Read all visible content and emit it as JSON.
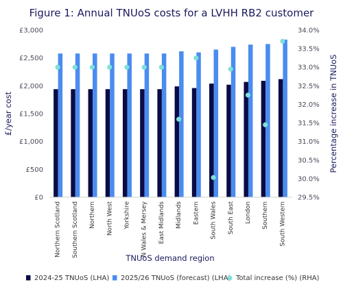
{
  "chart_data": {
    "type": "bar",
    "title": "Figure 1: Annual TNUoS costs for a LVHH RB2 customer",
    "xlabel": "TNUoS demand region",
    "ylabel": "£/year cost",
    "y2label": "Percentage increase in TNUoS",
    "ylim": [
      0,
      3000
    ],
    "y2lim": [
      29.5,
      34.0
    ],
    "yticks": [
      "£0",
      "£500",
      "£1,000",
      "£1,500",
      "£2,000",
      "£2,500",
      "£3,000"
    ],
    "y2ticks": [
      "29.5%",
      "30.0%",
      "30.5%",
      "31.0%",
      "31.5%",
      "32.0%",
      "32.5%",
      "33.0%",
      "33.5%",
      "34.0%"
    ],
    "categories": [
      "Northern Scotland",
      "Southern Scotland",
      "Northern",
      "North West",
      "Yorkshire",
      "N Wales & Mersey",
      "East Midlands",
      "Midlands",
      "Eastern",
      "South Wales",
      "South East",
      "London",
      "Southern",
      "South Western"
    ],
    "series": [
      {
        "name": "2024-25 TNUoS (LHA)",
        "color": "#0b0b45",
        "axis": "left",
        "kind": "bar",
        "values": [
          1940,
          1940,
          1940,
          1940,
          1940,
          1940,
          1940,
          1990,
          1960,
          2040,
          2020,
          2070,
          2090,
          2120
        ]
      },
      {
        "name": "2025/26 TNUoS (forecast) (LHA)",
        "color": "#4a8cf0",
        "axis": "left",
        "kind": "bar",
        "values": [
          2580,
          2580,
          2580,
          2580,
          2580,
          2580,
          2580,
          2620,
          2600,
          2650,
          2700,
          2740,
          2750,
          2830
        ]
      },
      {
        "name": "Total increase (%) (RHA)",
        "color": "#7ee0d8",
        "axis": "right",
        "kind": "scatter",
        "values": [
          33.0,
          33.0,
          33.0,
          33.0,
          33.0,
          33.0,
          33.0,
          31.6,
          33.25,
          30.03,
          32.95,
          32.25,
          31.45,
          33.7
        ]
      }
    ],
    "legend": "bottom",
    "grid": false
  }
}
